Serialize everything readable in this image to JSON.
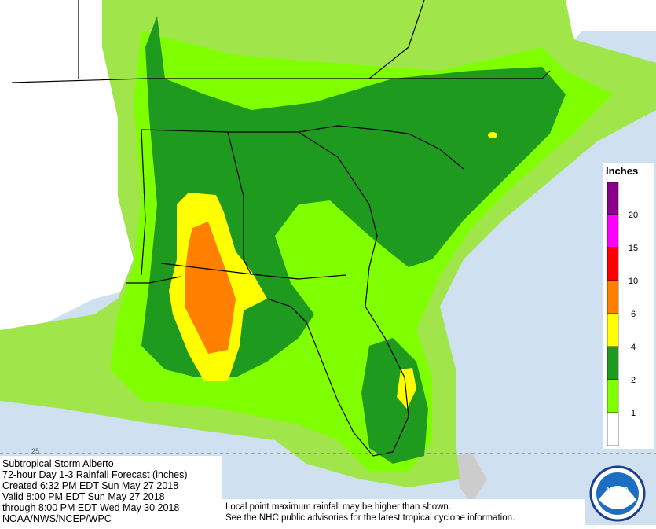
{
  "title": "Subtropical Storm Alberto",
  "info": [
    "72-hour Day 1-3 Rainfall Forecast (inches)",
    "Created 6:32 PM EDT Sun May 27 2018",
    "Valid 8:00 PM EDT Sun May 27 2018",
    "through 8:00 PM EDT Wed May 30 2018",
    "NOAA/NWS/NCEP/WPC"
  ],
  "footnote": [
    "Local point maximum rainfall may be higher than shown.",
    "See the NHC public advisories for the latest tropical cyclone information."
  ],
  "logo": "NOAA",
  "map": {
    "lat_label": "25"
  },
  "legend": {
    "title": "Inches",
    "labels": [
      20,
      15,
      10,
      6,
      4,
      2,
      1
    ],
    "colors": [
      "#8b008b",
      "#ff00ff",
      "#ff0000",
      "#ff8000",
      "#ffff00",
      "#1e9a1e",
      "#80ff00",
      "#ffffff"
    ]
  }
}
